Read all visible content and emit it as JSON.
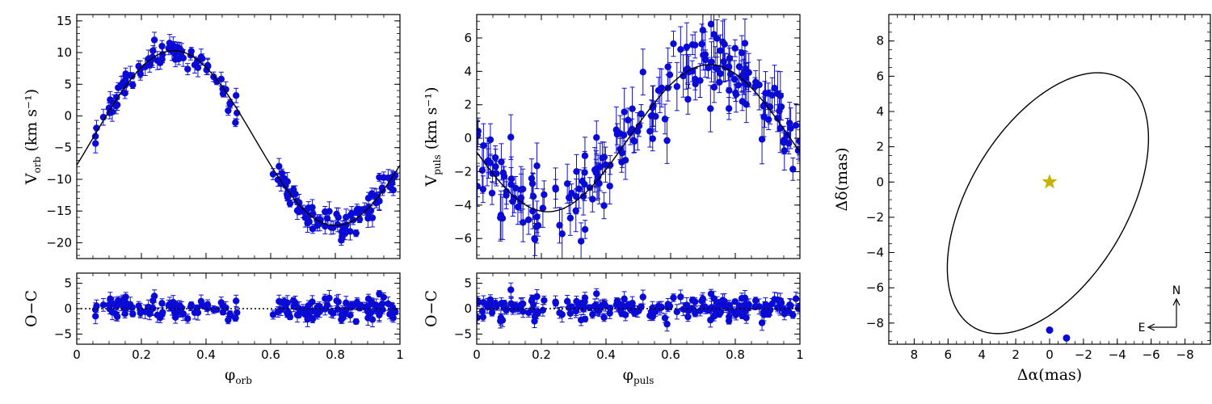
{
  "chart_data": [
    {
      "id": "orb",
      "type": "scatter",
      "title": "",
      "xlabel": "φ",
      "xlabel_sub": "orb",
      "ylabel": "V",
      "ylabel_sub": "orb",
      "ylabel_unit": "(km s⁻¹)",
      "xlim": [
        0.0,
        1.0
      ],
      "ylim": [
        -22.5,
        16
      ],
      "yticks": [
        -20,
        -15,
        -10,
        -5,
        0,
        5,
        10,
        15
      ],
      "xticks": [
        0.0,
        0.2,
        0.4,
        0.6,
        0.8,
        1.0
      ],
      "xtick_labels": [
        "0.0",
        "0.2",
        "0.4",
        "0.6",
        "0.8",
        "1.0"
      ],
      "model": {
        "type": "sine",
        "offset": -3.5,
        "amplitude": 13.8,
        "phase_of_peak": 0.3
      },
      "series": [
        {
          "name": "observations",
          "color": "#0a0ad6"
        }
      ],
      "phase_coverage": [
        [
          0.05,
          0.5
        ],
        [
          0.6,
          1.0
        ]
      ],
      "scatter": 1.0
    },
    {
      "id": "orb_res",
      "type": "scatter",
      "ylabel": "O−C",
      "ylim": [
        -7,
        7
      ],
      "yticks": [
        -5,
        0,
        5
      ],
      "xlim": [
        0.0,
        1.0
      ],
      "phase_coverage": [
        [
          0.05,
          0.5
        ],
        [
          0.6,
          1.0
        ]
      ],
      "scatter": 1.2
    },
    {
      "id": "puls",
      "type": "scatter",
      "title": "",
      "xlabel": "φ",
      "xlabel_sub": "puls",
      "ylabel": "V",
      "ylabel_sub": "puls",
      "ylabel_unit": "(km s⁻¹)",
      "xlim": [
        0.0,
        1.0
      ],
      "ylim": [
        -7.2,
        7.4
      ],
      "yticks": [
        -6,
        -4,
        -2,
        0,
        2,
        4,
        6
      ],
      "xticks": [
        0.0,
        0.2,
        0.4,
        0.6,
        0.8,
        1.0
      ],
      "xtick_labels": [
        "0.0",
        "0.2",
        "0.4",
        "0.6",
        "0.8",
        "1.0"
      ],
      "model": {
        "type": "sine",
        "offset": 0.0,
        "amplitude": 4.4,
        "phase_of_peak": 0.72
      },
      "series": [
        {
          "name": "observations",
          "color": "#0a0ad6"
        }
      ],
      "phase_coverage": [
        [
          0.0,
          1.0
        ]
      ],
      "scatter": 1.1
    },
    {
      "id": "puls_res",
      "type": "scatter",
      "ylabel": "O−C",
      "ylim": [
        -7,
        7
      ],
      "yticks": [
        -5,
        0,
        5
      ],
      "xlim": [
        0.0,
        1.0
      ],
      "phase_coverage": [
        [
          0.0,
          1.0
        ]
      ],
      "scatter": 1.2
    },
    {
      "id": "orbit",
      "type": "line",
      "xlabel": "Δα(mas)",
      "ylabel": "Δδ(mas)",
      "xlim": [
        9.5,
        -9.5
      ],
      "ylim": [
        -9.2,
        9.5
      ],
      "xticks": [
        8,
        6,
        4,
        2,
        0,
        -2,
        -4,
        -6,
        -8
      ],
      "xtick_labels": [
        "8",
        "6",
        "4",
        "2",
        "0",
        "−2",
        "−4",
        "−6",
        "−8"
      ],
      "yticks": [
        -8,
        -6,
        -4,
        -2,
        0,
        2,
        4,
        6,
        8
      ],
      "ytick_labels": [
        "−8",
        "−6",
        "−4",
        "−2",
        "0",
        "2",
        "4",
        "6",
        "8"
      ],
      "ellipse": {
        "center": [
          0.1,
          -1.2
        ],
        "semi_major": 8.3,
        "semi_minor": 4.6,
        "angle_deg": -57
      },
      "star": {
        "x": 0,
        "y": 0,
        "color": "#c8b400"
      },
      "points": [
        {
          "x": 0,
          "y": -8.4
        },
        {
          "x": -1.0,
          "y": -8.85
        }
      ],
      "compass": {
        "north": "N",
        "east": "E"
      }
    }
  ]
}
